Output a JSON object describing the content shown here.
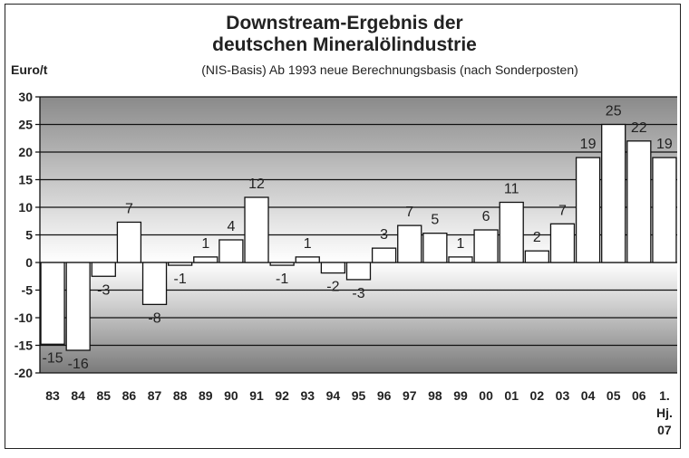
{
  "chart_data": {
    "type": "bar",
    "title": "Downstream-Ergebnis der",
    "title_line2": "deutschen Mineralölindustrie",
    "subtitle": "(NIS-Basis) Ab 1993 neue Berechnungsbasis (nach Sonderposten)",
    "ylabel": "Euro/t",
    "xlabel": "",
    "ylim": [
      -20,
      30
    ],
    "yticks": [
      30,
      25,
      20,
      15,
      10,
      5,
      0,
      -5,
      -10,
      -15,
      -20
    ],
    "grid": true,
    "categories": [
      "83",
      "84",
      "85",
      "86",
      "87",
      "88",
      "89",
      "90",
      "91",
      "92",
      "93",
      "94",
      "95",
      "96",
      "97",
      "98",
      "99",
      "00",
      "01",
      "02",
      "03",
      "04",
      "05",
      "06",
      "1. Hj. 07"
    ],
    "values": [
      -14.8,
      -15.9,
      -2.5,
      7.3,
      -7.6,
      -0.5,
      1,
      4.1,
      11.8,
      -0.5,
      1,
      -1.9,
      -3.1,
      2.6,
      6.7,
      5.3,
      1,
      5.9,
      10.9,
      2.1,
      7,
      19,
      25,
      22,
      19
    ],
    "data_labels": [
      "-15",
      "-16",
      "-3",
      "7",
      "-8",
      "-1",
      "1",
      "4",
      "12",
      "-1",
      "1",
      "-2",
      "-3",
      "3",
      "7",
      "5",
      "1",
      "6",
      "11",
      "2",
      "7",
      "19",
      "25",
      "22",
      "19"
    ]
  }
}
